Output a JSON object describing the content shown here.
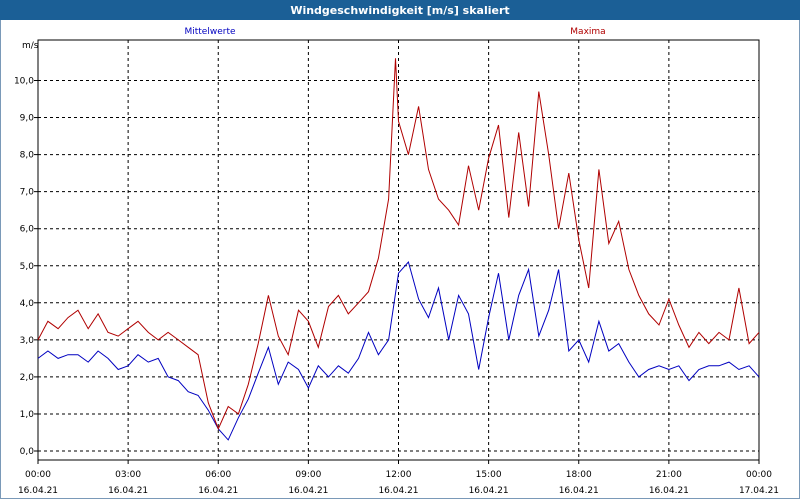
{
  "window": {
    "title": "Windgeschwindigkeit [m/s] skaliert"
  },
  "colors": {
    "mean": "#0000c0",
    "max": "#b00000",
    "grid": "#000000",
    "titlebar": "#1b5f96"
  },
  "chart_data": {
    "type": "line",
    "title": "Windgeschwindigkeit [m/s] skaliert",
    "ylabel": "m/s",
    "ylim": [
      0,
      10.8
    ],
    "xlim": [
      0,
      24
    ],
    "grid": true,
    "legend_placement": "top",
    "x_ticks": [
      {
        "hour": 0,
        "time": "00:00",
        "date": "16.04.21"
      },
      {
        "hour": 3,
        "time": "03:00",
        "date": "16.04.21"
      },
      {
        "hour": 6,
        "time": "06:00",
        "date": "16.04.21"
      },
      {
        "hour": 9,
        "time": "09:00",
        "date": "16.04.21"
      },
      {
        "hour": 12,
        "time": "12:00",
        "date": "16.04.21"
      },
      {
        "hour": 15,
        "time": "15:00",
        "date": "16.04.21"
      },
      {
        "hour": 18,
        "time": "18:00",
        "date": "16.04.21"
      },
      {
        "hour": 21,
        "time": "21:00",
        "date": "16.04.21"
      },
      {
        "hour": 24,
        "time": "00:00",
        "date": "17.04.21"
      }
    ],
    "y_ticks": [
      "0,0",
      "1,0",
      "2,0",
      "3,0",
      "4,0",
      "5,0",
      "6,0",
      "7,0",
      "8,0",
      "9,0",
      "10,0"
    ],
    "series": [
      {
        "name": "Mittelwerte",
        "color": "#0000c0",
        "x": [
          0,
          0.33,
          0.67,
          1,
          1.33,
          1.67,
          2,
          2.33,
          2.67,
          3,
          3.33,
          3.67,
          4,
          4.33,
          4.67,
          5,
          5.33,
          5.67,
          6,
          6.33,
          6.67,
          7,
          7.33,
          7.67,
          8,
          8.33,
          8.67,
          9,
          9.33,
          9.67,
          10,
          10.33,
          10.67,
          11,
          11.33,
          11.67,
          12,
          12.33,
          12.67,
          13,
          13.33,
          13.67,
          14,
          14.33,
          14.67,
          15,
          15.33,
          15.67,
          16,
          16.33,
          16.67,
          17,
          17.33,
          17.67,
          18,
          18.33,
          18.67,
          19,
          19.33,
          19.67,
          20,
          20.33,
          20.67,
          21,
          21.33,
          21.67,
          22,
          22.33,
          22.67,
          23,
          23.33,
          23.67,
          24
        ],
        "values": [
          2.5,
          2.7,
          2.5,
          2.6,
          2.6,
          2.4,
          2.7,
          2.5,
          2.2,
          2.3,
          2.6,
          2.4,
          2.5,
          2.0,
          1.9,
          1.6,
          1.5,
          1.1,
          0.6,
          0.3,
          0.9,
          1.4,
          2.1,
          2.8,
          1.8,
          2.4,
          2.2,
          1.7,
          2.3,
          2.0,
          2.3,
          2.1,
          2.5,
          3.2,
          2.6,
          3.0,
          4.8,
          5.1,
          4.1,
          3.6,
          4.4,
          3.0,
          4.2,
          3.7,
          2.2,
          3.6,
          4.8,
          3.0,
          4.2,
          4.9,
          3.1,
          3.8,
          4.9,
          2.7,
          3.0,
          2.4,
          3.5,
          2.7,
          2.9,
          2.4,
          2.0,
          2.2,
          2.3,
          2.2,
          2.3,
          1.9,
          2.2,
          2.3,
          2.3,
          2.4,
          2.2,
          2.3,
          2.0
        ]
      },
      {
        "name": "Maxima",
        "color": "#b00000",
        "x": [
          0,
          0.33,
          0.67,
          1,
          1.33,
          1.67,
          2,
          2.33,
          2.67,
          3,
          3.33,
          3.67,
          4,
          4.33,
          4.67,
          5,
          5.33,
          5.67,
          6,
          6.33,
          6.67,
          7,
          7.33,
          7.67,
          8,
          8.33,
          8.67,
          9,
          9.33,
          9.67,
          10,
          10.33,
          10.67,
          11,
          11.33,
          11.67,
          11.9,
          12,
          12.33,
          12.67,
          13,
          13.33,
          13.67,
          14,
          14.33,
          14.67,
          15,
          15.33,
          15.67,
          16,
          16.33,
          16.67,
          17,
          17.33,
          17.67,
          18,
          18.33,
          18.67,
          19,
          19.33,
          19.67,
          20,
          20.33,
          20.67,
          21,
          21.33,
          21.67,
          22,
          22.33,
          22.67,
          23,
          23.33,
          23.67,
          24
        ],
        "values": [
          3.0,
          3.5,
          3.3,
          3.6,
          3.8,
          3.3,
          3.7,
          3.2,
          3.1,
          3.3,
          3.5,
          3.2,
          3.0,
          3.2,
          3.0,
          2.8,
          2.6,
          1.3,
          0.6,
          1.2,
          1.0,
          1.8,
          2.9,
          4.2,
          3.1,
          2.6,
          3.8,
          3.5,
          2.8,
          3.9,
          4.2,
          3.7,
          4.0,
          4.3,
          5.2,
          6.8,
          10.6,
          8.9,
          8.0,
          9.3,
          7.6,
          6.8,
          6.5,
          6.1,
          7.7,
          6.5,
          7.9,
          8.8,
          6.3,
          8.6,
          6.6,
          9.7,
          8.0,
          6.0,
          7.5,
          5.7,
          4.4,
          7.6,
          5.6,
          6.2,
          4.9,
          4.2,
          3.7,
          3.4,
          4.1,
          3.4,
          2.8,
          3.2,
          2.9,
          3.2,
          3.0,
          4.4,
          2.9,
          3.2
        ]
      }
    ]
  }
}
